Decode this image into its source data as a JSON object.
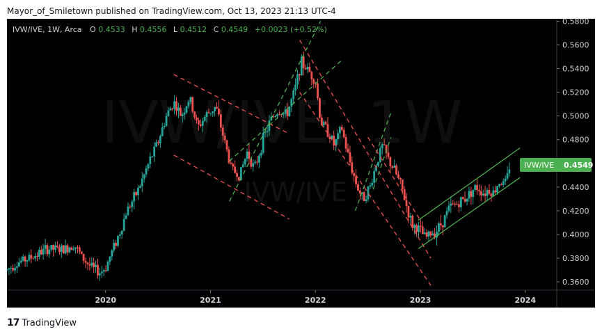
{
  "header": {
    "publish_line": "Mayor_of_Smiletown published on TradingView.com, Oct 13, 2023 21:13 UTC-4"
  },
  "legend": {
    "symbol": "IVW/IVE, 1W, Arca",
    "o_label": "O",
    "o_value": "0.4533",
    "h_label": "H",
    "h_value": "0.4556",
    "l_label": "L",
    "l_value": "0.4512",
    "c_label": "C",
    "c_value": "0.4549",
    "change": "+0.0023 (+0.52%)"
  },
  "watermark": {
    "big": "IVW/IVE, 1W",
    "small": "IVW/IVE"
  },
  "price_badge": {
    "symbol": "IVW/IVE",
    "value": "0.4549"
  },
  "footer": {
    "logo_mark": "17",
    "brand": "TradingView"
  },
  "colors": {
    "background": "#000000",
    "up": "#26a69a",
    "up_bright": "#2ecc40",
    "down": "#ef5350",
    "text": "#d1d4dc",
    "badge": "#4caf50",
    "green_channel": "#4caf50",
    "red_channel": "#ef5350"
  },
  "chart_data": {
    "type": "candlestick",
    "timeframe": "1W",
    "x_ticks": [
      "2020",
      "2021",
      "2022",
      "2023",
      "2024"
    ],
    "y_ticks": [
      "0.3600",
      "0.3800",
      "0.4000",
      "0.4200",
      "0.4400",
      "0.4600",
      "0.4800",
      "0.5000",
      "0.5200",
      "0.5400",
      "0.5600",
      "0.5800"
    ],
    "ylim": [
      0.353,
      0.582
    ],
    "xlim": [
      2019.06,
      2024.3
    ],
    "last_close": 0.4549,
    "trend_path": [
      [
        2019.06,
        0.37
      ],
      [
        2019.15,
        0.376
      ],
      [
        2019.3,
        0.381
      ],
      [
        2019.45,
        0.388
      ],
      [
        2019.6,
        0.387
      ],
      [
        2019.7,
        0.392
      ],
      [
        2019.78,
        0.38
      ],
      [
        2019.88,
        0.371
      ],
      [
        2019.95,
        0.368
      ],
      [
        2020.0,
        0.372
      ],
      [
        2020.08,
        0.39
      ],
      [
        2020.15,
        0.405
      ],
      [
        2020.2,
        0.42
      ],
      [
        2020.28,
        0.432
      ],
      [
        2020.35,
        0.446
      ],
      [
        2020.42,
        0.462
      ],
      [
        2020.5,
        0.478
      ],
      [
        2020.58,
        0.5
      ],
      [
        2020.65,
        0.512
      ],
      [
        2020.72,
        0.5
      ],
      [
        2020.8,
        0.515
      ],
      [
        2020.88,
        0.49
      ],
      [
        2020.95,
        0.5
      ],
      [
        2021.05,
        0.508
      ],
      [
        2021.13,
        0.48
      ],
      [
        2021.2,
        0.455
      ],
      [
        2021.28,
        0.45
      ],
      [
        2021.35,
        0.47
      ],
      [
        2021.42,
        0.455
      ],
      [
        2021.5,
        0.48
      ],
      [
        2021.58,
        0.498
      ],
      [
        2021.65,
        0.505
      ],
      [
        2021.72,
        0.5
      ],
      [
        2021.8,
        0.52
      ],
      [
        2021.86,
        0.545
      ],
      [
        2021.92,
        0.54
      ],
      [
        2022.0,
        0.53
      ],
      [
        2022.05,
        0.495
      ],
      [
        2022.12,
        0.487
      ],
      [
        2022.18,
        0.475
      ],
      [
        2022.25,
        0.49
      ],
      [
        2022.3,
        0.47
      ],
      [
        2022.38,
        0.445
      ],
      [
        2022.45,
        0.43
      ],
      [
        2022.52,
        0.44
      ],
      [
        2022.58,
        0.46
      ],
      [
        2022.64,
        0.475
      ],
      [
        2022.7,
        0.462
      ],
      [
        2022.75,
        0.455
      ],
      [
        2022.82,
        0.44
      ],
      [
        2022.88,
        0.42
      ],
      [
        2022.92,
        0.408
      ],
      [
        2022.98,
        0.405
      ],
      [
        2023.05,
        0.397
      ],
      [
        2023.1,
        0.401
      ],
      [
        2023.15,
        0.403
      ],
      [
        2023.22,
        0.412
      ],
      [
        2023.28,
        0.423
      ],
      [
        2023.35,
        0.426
      ],
      [
        2023.42,
        0.43
      ],
      [
        2023.5,
        0.438
      ],
      [
        2023.55,
        0.44
      ],
      [
        2023.6,
        0.435
      ],
      [
        2023.65,
        0.438
      ],
      [
        2023.7,
        0.435
      ],
      [
        2023.75,
        0.445
      ],
      [
        2023.8,
        0.442
      ],
      [
        2023.86,
        0.4549
      ]
    ],
    "annotations": [
      {
        "kind": "channel",
        "color": "red",
        "from": [
          2020.65,
          0.535
        ],
        "to": [
          2021.75,
          0.485
        ]
      },
      {
        "kind": "channel",
        "color": "red",
        "from": [
          2020.65,
          0.467
        ],
        "to": [
          2021.75,
          0.413
        ]
      },
      {
        "kind": "channel",
        "color": "green",
        "from": [
          2021.18,
          0.428
        ],
        "to": [
          2022.05,
          0.58
        ]
      },
      {
        "kind": "channel",
        "color": "green",
        "from": [
          2021.18,
          0.462
        ],
        "to": [
          2022.25,
          0.547
        ]
      },
      {
        "kind": "channel",
        "color": "red",
        "from": [
          2021.85,
          0.564
        ],
        "to": [
          2023.1,
          0.38
        ]
      },
      {
        "kind": "channel",
        "color": "red",
        "from": [
          2021.85,
          0.52
        ],
        "to": [
          2023.1,
          0.357
        ]
      },
      {
        "kind": "channel",
        "color": "green",
        "from": [
          2022.38,
          0.42
        ],
        "to": [
          2022.72,
          0.503
        ]
      },
      {
        "kind": "channel",
        "color": "green",
        "from": [
          2022.55,
          0.438
        ],
        "to": [
          2022.72,
          0.482
        ]
      },
      {
        "kind": "channel",
        "color": "red",
        "from": [
          2022.5,
          0.482
        ],
        "to": [
          2023.0,
          0.412
        ]
      },
      {
        "kind": "trendline",
        "color": "green",
        "from": [
          2022.98,
          0.388
        ],
        "to": [
          2023.95,
          0.448
        ]
      },
      {
        "kind": "trendline",
        "color": "green",
        "from": [
          2022.98,
          0.412
        ],
        "to": [
          2023.95,
          0.473
        ]
      }
    ]
  }
}
